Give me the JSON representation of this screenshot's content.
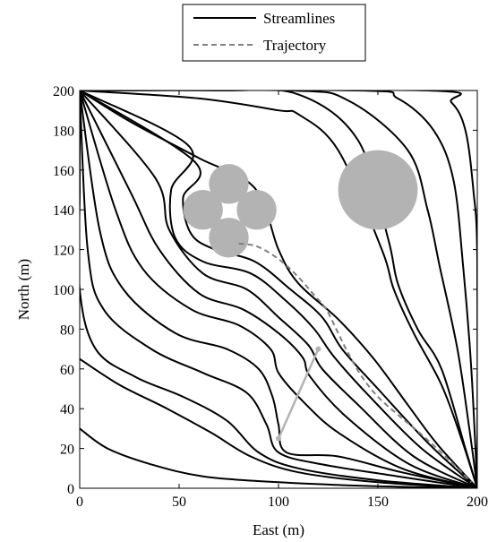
{
  "chart_data": {
    "type": "line",
    "title": "",
    "xlabel": "East (m)",
    "ylabel": "North (m)",
    "xlim": [
      0,
      200
    ],
    "ylim": [
      0,
      200
    ],
    "xticks": [
      "0",
      "50",
      "100",
      "150",
      "200"
    ],
    "yticks": [
      "0",
      "20",
      "40",
      "60",
      "80",
      "100",
      "120",
      "140",
      "160",
      "180",
      "200"
    ],
    "grid": false,
    "legend": {
      "placement": "top-center-outside",
      "entries": [
        {
          "name": "Streamlines",
          "style": "solid",
          "color": "#000000"
        },
        {
          "name": "Trajectory",
          "style": "dashed",
          "color": "#808080"
        }
      ]
    },
    "source": [
      0,
      200
    ],
    "sink": [
      200,
      0
    ],
    "series": [
      {
        "name": "Trajectory",
        "style": "dashed",
        "color": "#808080",
        "points": [
          [
            80,
            123
          ],
          [
            88,
            122
          ],
          [
            96,
            118
          ],
          [
            104,
            112
          ],
          [
            112,
            104
          ],
          [
            118,
            97
          ],
          [
            124,
            90
          ],
          [
            130,
            78
          ],
          [
            135,
            68
          ],
          [
            142,
            56
          ],
          [
            150,
            46
          ],
          [
            160,
            37
          ],
          [
            172,
            27
          ],
          [
            186,
            14
          ],
          [
            197,
            3
          ]
        ]
      }
    ],
    "streamlines": [
      [
        [
          0,
          200
        ],
        [
          26,
          184
        ],
        [
          60,
          166
        ],
        [
          88,
          151
        ],
        [
          100,
          120
        ],
        [
          110,
          103
        ],
        [
          130,
          85
        ],
        [
          148,
          65
        ],
        [
          165,
          42
        ],
        [
          180,
          22
        ],
        [
          200,
          0
        ]
      ],
      [
        [
          0,
          200
        ],
        [
          70,
          200
        ],
        [
          110,
          198
        ],
        [
          140,
          175
        ],
        [
          155,
          126
        ],
        [
          160,
          103
        ],
        [
          170,
          80
        ],
        [
          182,
          60
        ],
        [
          194,
          20
        ],
        [
          200,
          0
        ]
      ],
      [
        [
          0,
          200
        ],
        [
          105,
          200
        ],
        [
          135,
          195
        ],
        [
          165,
          170
        ],
        [
          175,
          140
        ],
        [
          181,
          112
        ],
        [
          190,
          70
        ],
        [
          196,
          30
        ],
        [
          200,
          0
        ]
      ],
      [
        [
          0,
          200
        ],
        [
          140,
          200
        ],
        [
          160,
          196
        ],
        [
          178,
          180
        ],
        [
          188,
          155
        ],
        [
          193,
          110
        ],
        [
          197,
          60
        ],
        [
          200,
          0
        ]
      ],
      [
        [
          0,
          200
        ],
        [
          175,
          200
        ],
        [
          187,
          194
        ],
        [
          194,
          180
        ],
        [
          198,
          150
        ],
        [
          200,
          115
        ],
        [
          200,
          0
        ]
      ],
      [
        [
          0,
          200
        ],
        [
          58,
          164
        ],
        [
          52,
          146
        ],
        [
          56,
          128
        ],
        [
          68,
          120
        ],
        [
          88,
          114
        ],
        [
          106,
          100
        ],
        [
          122,
          86
        ],
        [
          132,
          70
        ],
        [
          150,
          50
        ],
        [
          176,
          22
        ],
        [
          200,
          0
        ]
      ],
      [
        [
          0,
          200
        ],
        [
          55,
          172
        ],
        [
          46,
          150
        ],
        [
          48,
          126
        ],
        [
          62,
          114
        ],
        [
          86,
          108
        ],
        [
          104,
          94
        ],
        [
          118,
          80
        ],
        [
          128,
          66
        ],
        [
          146,
          46
        ],
        [
          172,
          20
        ],
        [
          200,
          0
        ]
      ],
      [
        [
          0,
          200
        ],
        [
          38,
          156
        ],
        [
          45,
          130
        ],
        [
          62,
          108
        ],
        [
          84,
          100
        ],
        [
          100,
          86
        ],
        [
          115,
          72
        ],
        [
          122,
          60
        ],
        [
          140,
          42
        ],
        [
          168,
          16
        ],
        [
          200,
          0
        ]
      ],
      [
        [
          0,
          200
        ],
        [
          26,
          148
        ],
        [
          40,
          120
        ],
        [
          60,
          98
        ],
        [
          82,
          90
        ],
        [
          100,
          78
        ],
        [
          112,
          66
        ],
        [
          116,
          56
        ],
        [
          134,
          36
        ],
        [
          166,
          12
        ],
        [
          200,
          0
        ]
      ],
      [
        [
          0,
          200
        ],
        [
          18,
          140
        ],
        [
          32,
          110
        ],
        [
          56,
          90
        ],
        [
          80,
          82
        ],
        [
          96,
          70
        ],
        [
          100,
          58
        ],
        [
          112,
          44
        ],
        [
          130,
          28
        ],
        [
          162,
          10
        ],
        [
          200,
          0
        ]
      ],
      [
        [
          0,
          200
        ],
        [
          10,
          130
        ],
        [
          22,
          100
        ],
        [
          48,
          78
        ],
        [
          74,
          70
        ],
        [
          90,
          60
        ],
        [
          97,
          46
        ],
        [
          100,
          32
        ],
        [
          104,
          18
        ],
        [
          130,
          16
        ],
        [
          162,
          8
        ],
        [
          200,
          0
        ]
      ],
      [
        [
          0,
          200
        ],
        [
          4,
          120
        ],
        [
          12,
          90
        ],
        [
          36,
          70
        ],
        [
          62,
          58
        ],
        [
          84,
          48
        ],
        [
          94,
          32
        ],
        [
          100,
          18
        ],
        [
          122,
          12
        ],
        [
          160,
          6
        ],
        [
          200,
          0
        ]
      ],
      [
        [
          0,
          200
        ],
        [
          0,
          150
        ],
        [
          0,
          100
        ],
        [
          8,
          70
        ],
        [
          28,
          56
        ],
        [
          52,
          46
        ],
        [
          74,
          34
        ],
        [
          90,
          18
        ],
        [
          110,
          10
        ],
        [
          150,
          4
        ],
        [
          200,
          0
        ]
      ],
      [
        [
          0,
          65
        ],
        [
          20,
          52
        ],
        [
          44,
          40
        ],
        [
          66,
          28
        ],
        [
          86,
          16
        ],
        [
          110,
          8
        ],
        [
          150,
          3
        ],
        [
          200,
          0
        ]
      ],
      [
        [
          0,
          30
        ],
        [
          14,
          20
        ],
        [
          36,
          12
        ],
        [
          62,
          6
        ],
        [
          100,
          3
        ],
        [
          150,
          1
        ],
        [
          200,
          0
        ]
      ],
      [
        [
          0,
          200
        ],
        [
          60,
          196
        ],
        [
          100,
          190
        ],
        [
          110,
          188
        ],
        [
          130,
          170
        ],
        [
          152,
          120
        ],
        [
          158,
          100
        ],
        [
          168,
          78
        ],
        [
          182,
          52
        ],
        [
          192,
          25
        ],
        [
          200,
          0
        ]
      ]
    ],
    "obstacles": [
      {
        "label": "",
        "x": 75,
        "y": 153,
        "r": 10,
        "color": "#b3b3b3"
      },
      {
        "label": "",
        "x": 62,
        "y": 140,
        "r": 10,
        "color": "#b3b3b3"
      },
      {
        "label": "",
        "x": 89,
        "y": 140,
        "r": 10,
        "color": "#b3b3b3"
      },
      {
        "label": "",
        "x": 75,
        "y": 126,
        "r": 10,
        "color": "#b3b3b3"
      },
      {
        "label": "",
        "x": 150,
        "y": 150,
        "r": 20,
        "color": "#b3b3b3"
      }
    ],
    "segment": {
      "from": [
        100,
        25
      ],
      "to": [
        120,
        70
      ],
      "color": "#b3b3b3"
    },
    "colors": {
      "streamline": "#000000",
      "trajectory": "#808080",
      "obstacle": "#b3b3b3",
      "segment": "#b3b3b3"
    }
  }
}
